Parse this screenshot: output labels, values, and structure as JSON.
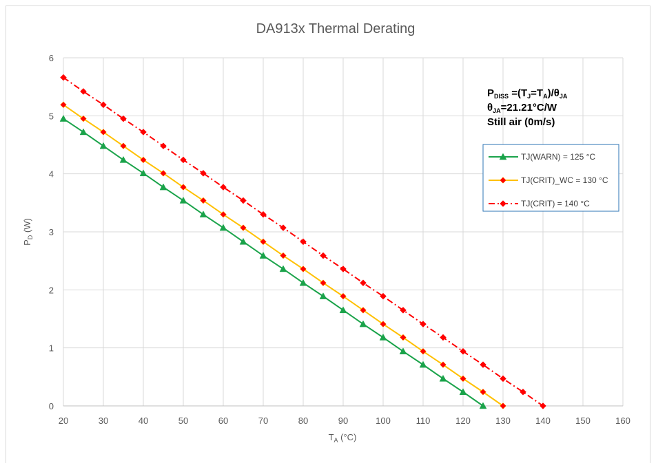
{
  "chart_data": {
    "type": "line",
    "title": "DA913x Thermal Derating",
    "xlabel": {
      "main": "T",
      "sub": "A",
      "rest": " (°C)"
    },
    "ylabel": {
      "main": "P",
      "sub": "D",
      "rest": " (W)"
    },
    "xlim": [
      20,
      160
    ],
    "ylim": [
      0,
      6
    ],
    "xticks": [
      20,
      30,
      40,
      50,
      60,
      70,
      80,
      90,
      100,
      110,
      120,
      130,
      140,
      150,
      160
    ],
    "yticks": [
      0,
      1,
      2,
      3,
      4,
      5,
      6
    ],
    "grid": true,
    "legend_position": "right",
    "annotation": {
      "line1": {
        "a": "P",
        "b": "DISS",
        "c": " =(T",
        "d": "J",
        "e": "=T",
        "f": "A",
        "g": ")/θ",
        "h": "JA"
      },
      "line2": {
        "a": "θ",
        "b": "JA",
        "c": "=21.21°C/W"
      },
      "line3": "Still air (0m/s)"
    },
    "series": [
      {
        "name": "TJ(WARN) = 125 °C",
        "color": "#1aa34a",
        "marker": "triangle",
        "dash": "solid",
        "x": [
          20,
          25,
          30,
          35,
          40,
          45,
          50,
          55,
          60,
          65,
          70,
          75,
          80,
          85,
          90,
          95,
          100,
          105,
          110,
          115,
          120,
          125
        ],
        "y": [
          4.95,
          4.72,
          4.48,
          4.24,
          4.01,
          3.77,
          3.54,
          3.3,
          3.07,
          2.83,
          2.59,
          2.36,
          2.12,
          1.89,
          1.65,
          1.41,
          1.18,
          0.94,
          0.71,
          0.47,
          0.24,
          0.0
        ]
      },
      {
        "name": "TJ(CRIT)_WC = 130 °C",
        "color": "#ffc000",
        "marker": "diamond",
        "marker_color": "#ff0000",
        "dash": "solid",
        "x": [
          20,
          25,
          30,
          35,
          40,
          45,
          50,
          55,
          60,
          65,
          70,
          75,
          80,
          85,
          90,
          95,
          100,
          105,
          110,
          115,
          120,
          125,
          130
        ],
        "y": [
          5.19,
          4.95,
          4.72,
          4.48,
          4.24,
          4.01,
          3.77,
          3.54,
          3.3,
          3.07,
          2.83,
          2.59,
          2.36,
          2.12,
          1.89,
          1.65,
          1.41,
          1.18,
          0.94,
          0.71,
          0.47,
          0.24,
          0.0
        ]
      },
      {
        "name": "TJ(CRIT) = 140 °C",
        "color": "#ff0000",
        "marker": "diamond",
        "dash": "dashdot",
        "x": [
          20,
          25,
          30,
          35,
          40,
          45,
          50,
          55,
          60,
          65,
          70,
          75,
          80,
          85,
          90,
          95,
          100,
          105,
          110,
          115,
          120,
          125,
          130,
          135,
          140
        ],
        "y": [
          5.66,
          5.42,
          5.19,
          4.95,
          4.72,
          4.48,
          4.24,
          4.01,
          3.77,
          3.54,
          3.3,
          3.07,
          2.83,
          2.59,
          2.36,
          2.12,
          1.89,
          1.65,
          1.41,
          1.18,
          0.94,
          0.71,
          0.47,
          0.24,
          0.0
        ]
      }
    ]
  }
}
